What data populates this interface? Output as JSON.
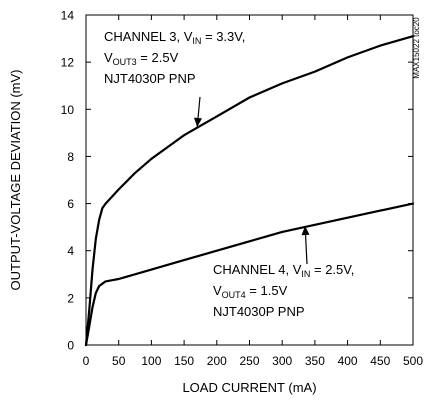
{
  "chart_data": {
    "type": "line",
    "title": "",
    "xlabel": "LOAD CURRENT (mA)",
    "ylabel": "OUTPUT-VOLTAGE DEVIATION (mV)",
    "xlim": [
      0,
      500
    ],
    "ylim": [
      0,
      14
    ],
    "x_ticks": [
      "0",
      "50",
      "100",
      "150",
      "200",
      "250",
      "300",
      "350",
      "400",
      "450",
      "500"
    ],
    "y_ticks": [
      "0",
      "2",
      "4",
      "6",
      "8",
      "10",
      "12",
      "14"
    ],
    "grid": false,
    "watermark": "MAX15022 toc20",
    "series": [
      {
        "name": "CHANNEL 3",
        "x": [
          0,
          5,
          10,
          15,
          20,
          25,
          30,
          40,
          50,
          75,
          100,
          125,
          150,
          175,
          200,
          250,
          300,
          350,
          400,
          450,
          500
        ],
        "values": [
          0,
          1.5,
          3.2,
          4.5,
          5.3,
          5.8,
          6.0,
          6.3,
          6.6,
          7.3,
          7.9,
          8.4,
          8.9,
          9.3,
          9.7,
          10.5,
          11.1,
          11.6,
          12.2,
          12.7,
          13.1
        ]
      },
      {
        "name": "CHANNEL 4",
        "x": [
          0,
          5,
          10,
          15,
          20,
          25,
          30,
          40,
          50,
          100,
          150,
          200,
          250,
          300,
          350,
          400,
          450,
          500
        ],
        "values": [
          0,
          0.8,
          1.6,
          2.2,
          2.5,
          2.6,
          2.7,
          2.75,
          2.8,
          3.2,
          3.6,
          4.0,
          4.4,
          4.8,
          5.1,
          5.4,
          5.7,
          6.0
        ]
      }
    ],
    "annotations": [
      {
        "series": "CHANNEL 3",
        "lines": [
          "CHANNEL 3, V_IN = 3.3V,",
          "V_OUT3 = 2.5V",
          "NJT4030P PNP"
        ],
        "line1": [
          {
            "t": "CHANNEL 3, V"
          },
          {
            "t": "IN",
            "sub": true
          },
          {
            "t": " = 3.3V,"
          }
        ],
        "line2": [
          {
            "t": "V"
          },
          {
            "t": "OUT3",
            "sub": true
          },
          {
            "t": " = 2.5V"
          }
        ],
        "line3": [
          {
            "t": "NJT4030P PNP"
          }
        ],
        "arrow_to": [
          170,
          9.25
        ]
      },
      {
        "series": "CHANNEL 4",
        "lines": [
          "CHANNEL 4, V_IN = 2.5V,",
          "V_OUT4 = 1.5V",
          "NJT4030P PNP"
        ],
        "line1": [
          {
            "t": "CHANNEL 4, V"
          },
          {
            "t": "IN",
            "sub": true
          },
          {
            "t": " = 2.5V,"
          }
        ],
        "line2": [
          {
            "t": "V"
          },
          {
            "t": "OUT4",
            "sub": true
          },
          {
            "t": " = 1.5V"
          }
        ],
        "line3": [
          {
            "t": "NJT4030P PNP"
          }
        ],
        "arrow_to": [
          335,
          5.05
        ]
      }
    ]
  }
}
